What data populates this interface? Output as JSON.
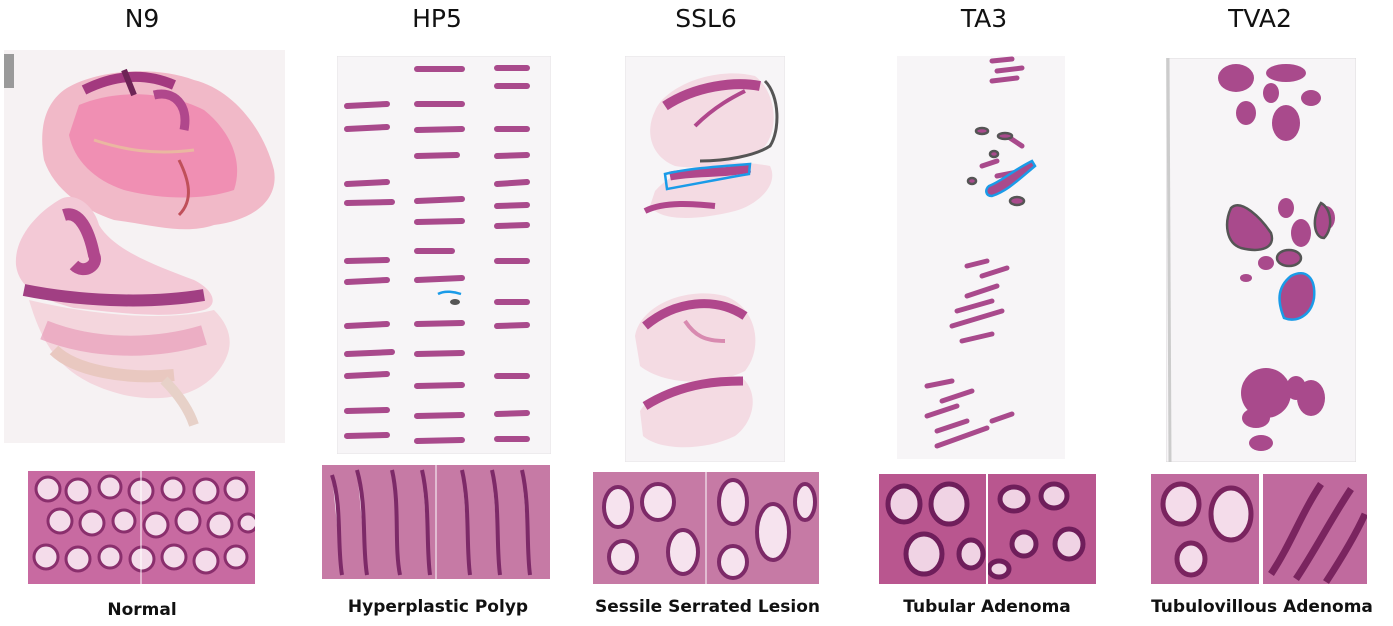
{
  "samples": [
    {
      "id": "N9",
      "diagnosis": "Normal"
    },
    {
      "id": "HP5",
      "diagnosis": "Hyperplastic Polyp"
    },
    {
      "id": "SSL6",
      "diagnosis": "Sessile Serrated Lesion"
    },
    {
      "id": "TA3",
      "diagnosis": "Tubular Adenoma"
    },
    {
      "id": "TVA2",
      "diagnosis": "Tubulovillous Adenoma"
    }
  ],
  "colors": {
    "tissue": "#b0478c",
    "tissue_light": "#e08ab8",
    "stroma": "#f4d8e2",
    "background": "#f7f5f7",
    "annotation_blue": "#1a9be8",
    "annotation_gray": "#555555"
  }
}
